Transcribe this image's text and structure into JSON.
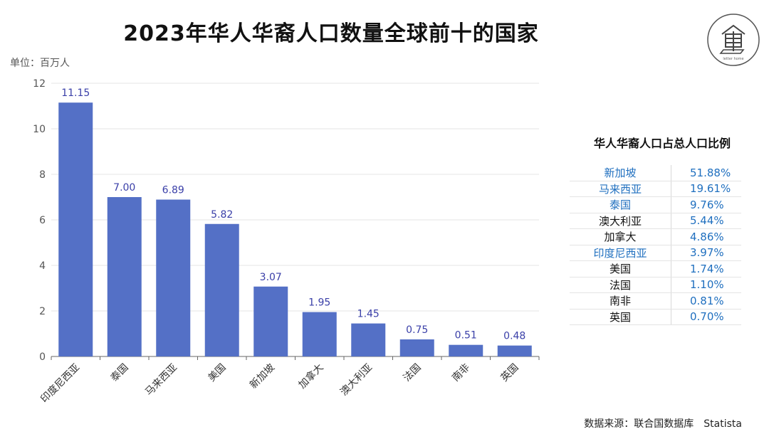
{
  "header": {
    "title": "2023年华人华裔人口数量全球前十的国家",
    "unit": "单位：百万人",
    "logo_text": "letter home"
  },
  "chart_data": {
    "type": "bar",
    "categories": [
      "印度尼西亚",
      "泰国",
      "马来西亚",
      "美国",
      "新加坡",
      "加拿大",
      "澳大利亚",
      "法国",
      "南非",
      "英国"
    ],
    "values": [
      11.15,
      7.0,
      6.89,
      5.82,
      3.07,
      1.95,
      1.45,
      0.75,
      0.51,
      0.48
    ],
    "value_labels": [
      "11.15",
      "7.00",
      "6.89",
      "5.82",
      "3.07",
      "1.95",
      "1.45",
      "0.75",
      "0.51",
      "0.48"
    ],
    "yticks": [
      "0",
      "2",
      "4",
      "6",
      "8",
      "10",
      "12"
    ],
    "ylim": [
      0,
      12
    ],
    "grid": true,
    "bar_color": "#5470c6",
    "label_color": "#3a3fa8"
  },
  "share_table": {
    "title": "华人华裔人口占总人口比例",
    "rows": [
      {
        "country": "新加坡",
        "pct": "51.88%",
        "highlight": true
      },
      {
        "country": "马来西亚",
        "pct": "19.61%",
        "highlight": true
      },
      {
        "country": "泰国",
        "pct": "9.76%",
        "highlight": true
      },
      {
        "country": "澳大利亚",
        "pct": "5.44%",
        "highlight": false
      },
      {
        "country": "加拿大",
        "pct": "4.86%",
        "highlight": false
      },
      {
        "country": "印度尼西亚",
        "pct": "3.97%",
        "highlight": true
      },
      {
        "country": "美国",
        "pct": "1.74%",
        "highlight": false
      },
      {
        "country": "法国",
        "pct": "1.10%",
        "highlight": false
      },
      {
        "country": "南非",
        "pct": "0.81%",
        "highlight": false
      },
      {
        "country": "英国",
        "pct": "0.70%",
        "highlight": false
      }
    ]
  },
  "footer": {
    "source_label": "数据来源：联合国数据库",
    "source_name": "Statista"
  }
}
